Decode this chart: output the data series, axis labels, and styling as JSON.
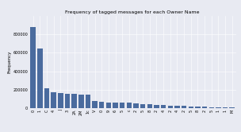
{
  "title": "Frequency of tagged messages for each Owner Name",
  "ylabel": "Frequency",
  "xlabel": "",
  "background_color": "#e8eaf2",
  "bar_color": "#4a6b9e",
  "num_bars": 30,
  "values": [
    880000,
    650000,
    220000,
    175000,
    162000,
    158000,
    153000,
    150000,
    148000,
    80000,
    68000,
    65000,
    62000,
    60000,
    58000,
    55000,
    48000,
    40000,
    36000,
    33000,
    31000,
    29000,
    25000,
    20000,
    17000,
    15000,
    13000,
    12000,
    10000,
    9000
  ],
  "xtick_labels": [
    "0",
    "1",
    "C",
    "4",
    "J",
    "3",
    "2A",
    "2M",
    "1c",
    "V",
    "0",
    "9",
    "6",
    "5",
    "c",
    "2",
    "5",
    "8",
    "2",
    "4",
    "2",
    "4",
    "2",
    "5",
    "8",
    "2",
    "5",
    "1",
    "1",
    "M"
  ],
  "ylim": [
    0,
    1000000
  ],
  "yticks": [
    0,
    200000,
    400000,
    600000,
    800000
  ],
  "ytick_labels": [
    "0",
    "200000",
    "400000",
    "600000",
    "800000"
  ],
  "title_fontsize": 4.5,
  "axis_fontsize": 4,
  "tick_fontsize": 3.5,
  "figsize": [
    3.04,
    1.66
  ],
  "dpi": 100
}
